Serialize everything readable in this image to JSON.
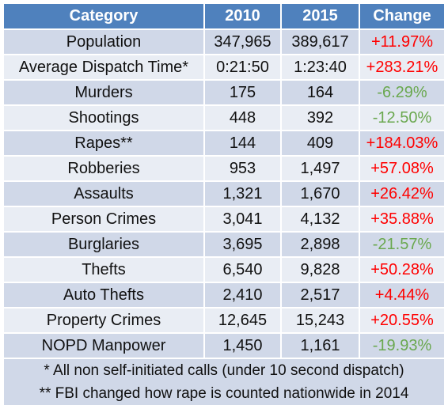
{
  "table": {
    "headers": [
      "Category",
      "2010",
      "2015",
      "Change"
    ],
    "rows": [
      {
        "category": "Population",
        "y2010": "347,965",
        "y2015": "389,617",
        "change": "+11.97%",
        "direction": "increase"
      },
      {
        "category": "Average Dispatch Time*",
        "y2010": "0:21:50",
        "y2015": "1:23:40",
        "change": "+283.21%",
        "direction": "increase"
      },
      {
        "category": "Murders",
        "y2010": "175",
        "y2015": "164",
        "change": "-6.29%",
        "direction": "decrease"
      },
      {
        "category": "Shootings",
        "y2010": "448",
        "y2015": "392",
        "change": "-12.50%",
        "direction": "decrease"
      },
      {
        "category": "Rapes**",
        "y2010": "144",
        "y2015": "409",
        "change": "+184.03%",
        "direction": "increase"
      },
      {
        "category": "Robberies",
        "y2010": "953",
        "y2015": "1,497",
        "change": "+57.08%",
        "direction": "increase"
      },
      {
        "category": "Assaults",
        "y2010": "1,321",
        "y2015": "1,670",
        "change": "+26.42%",
        "direction": "increase"
      },
      {
        "category": "Person Crimes",
        "y2010": "3,041",
        "y2015": "4,132",
        "change": "+35.88%",
        "direction": "increase"
      },
      {
        "category": "Burglaries",
        "y2010": "3,695",
        "y2015": "2,898",
        "change": "-21.57%",
        "direction": "decrease"
      },
      {
        "category": "Thefts",
        "y2010": "6,540",
        "y2015": "9,828",
        "change": "+50.28%",
        "direction": "increase"
      },
      {
        "category": "Auto Thefts",
        "y2010": "2,410",
        "y2015": "2,517",
        "change": "+4.44%",
        "direction": "increase"
      },
      {
        "category": "Property Crimes",
        "y2010": "12,645",
        "y2015": "15,243",
        "change": "+20.55%",
        "direction": "increase"
      },
      {
        "category": "NOPD Manpower",
        "y2010": "1,450",
        "y2015": "1,161",
        "change": "-19.93%",
        "direction": "decrease"
      }
    ],
    "footnotes": [
      "* All non self-initiated calls (under 10 second dispatch)",
      "** FBI changed how rape is counted nationwide in 2014"
    ]
  },
  "colors": {
    "header_bg": "#4f81bd",
    "row_odd": "#d0d8e8",
    "row_even": "#e9edf4",
    "increase": "#ff0000",
    "decrease": "#6aa84f"
  }
}
